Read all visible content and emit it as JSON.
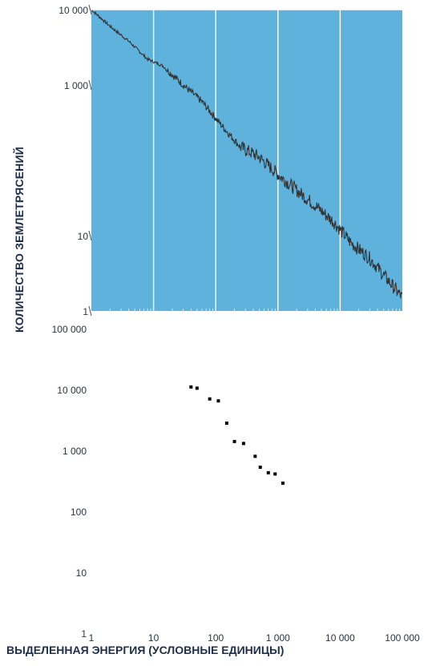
{
  "chart_data": [
    {
      "type": "line",
      "xscale": "log",
      "yscale": "log",
      "ylim": [
        1,
        10000
      ],
      "y_tick_labels": [
        "10 000",
        "1 000",
        "10",
        "1"
      ],
      "y_tick_values": [
        10000,
        1000,
        10,
        1
      ],
      "grid": "vertical",
      "background": "#5fb2dc",
      "line_color": "#333333",
      "series": [
        {
          "x": [
            1,
            2,
            4,
            8,
            14,
            30,
            60,
            120,
            250,
            500,
            1000,
            2000,
            4000,
            8000,
            15000,
            30000,
            60000,
            100000
          ],
          "y": [
            10000,
            6000,
            3800,
            2200,
            1800,
            1000,
            600,
            300,
            150,
            110,
            65,
            40,
            25,
            15,
            8,
            5,
            2.5,
            1.5
          ]
        }
      ]
    },
    {
      "type": "scatter",
      "xscale": "log",
      "yscale": "log",
      "xlim": [
        1,
        100000
      ],
      "ylim": [
        1,
        100000
      ],
      "x_tick_labels": [
        "1",
        "10",
        "100",
        "1 000",
        "10 000",
        "100 000"
      ],
      "x_tick_values": [
        1,
        10,
        100,
        1000,
        10000,
        100000
      ],
      "y_tick_labels": [
        "100 000",
        "10 000",
        "1 000",
        "100",
        "10",
        "1"
      ],
      "y_tick_values": [
        100000,
        10000,
        1000,
        100,
        10,
        1
      ],
      "marker_color": "#000000",
      "series": [
        {
          "x": [
            40,
            50,
            80,
            110,
            150,
            200,
            280,
            430,
            520,
            700,
            900,
            1200
          ],
          "y": [
            11000,
            10500,
            7000,
            6500,
            2800,
            1400,
            1300,
            800,
            530,
            430,
            410,
            290
          ]
        }
      ]
    }
  ],
  "ylabel": "КОЛИЧЕСТВО ЗЕМЛЕТРЯСЕНИЙ",
  "xlabel": "ВЫДЕЛЕННАЯ ЭНЕРГИЯ (УСЛОВНЫЕ ЕДИНИЦЫ)"
}
